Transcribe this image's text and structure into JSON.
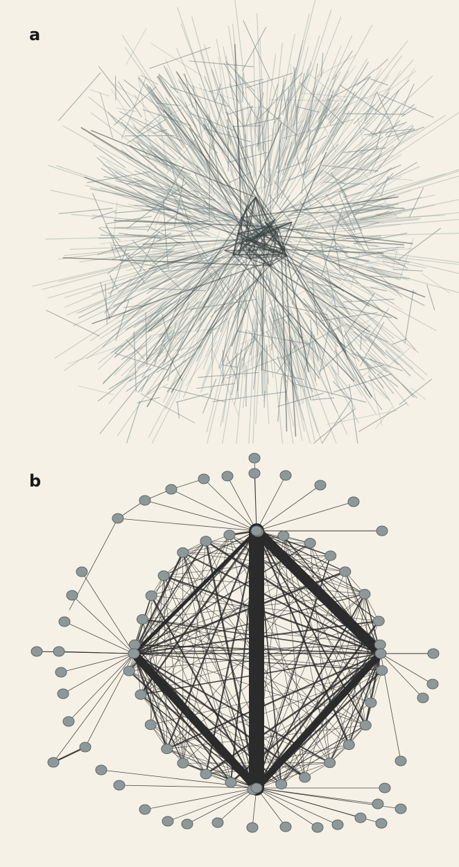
{
  "figure": {
    "panels": [
      {
        "label": "a",
        "kind": "dense-network-hairball"
      },
      {
        "label": "b",
        "kind": "hub-network-circular-layout"
      }
    ]
  },
  "colors": {
    "background": "#f5f1e6",
    "panel_a_edges": "#7f8c8b",
    "panel_a_dark_edges": "#3d4646",
    "panel_b_edges": "#2b2b2b",
    "panel_b_nodes_fill": "#8e9899",
    "panel_b_nodes_stroke": "#5e6667"
  }
}
